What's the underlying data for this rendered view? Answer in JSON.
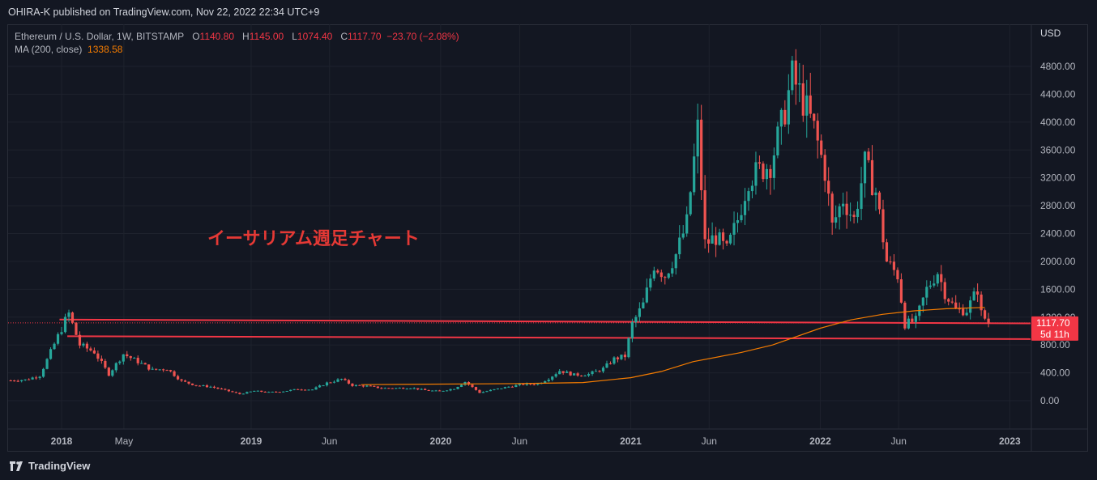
{
  "header": {
    "published_text": "OHIRA-K published on TradingView.com, Nov 22, 2022 22:34 UTC+9"
  },
  "legend": {
    "symbol": "Ethereum / U.S. Dollar, 1W, BITSTAMP",
    "open_label": "O",
    "open": "1140.80",
    "high_label": "H",
    "high": "1145.00",
    "low_label": "L",
    "low": "1074.40",
    "close_label": "C",
    "close": "1117.70",
    "change": "−23.70 (−2.08%)",
    "ma_label": "MA (200, close)",
    "ma_value": "1338.58"
  },
  "footer": {
    "brand": "TradingView"
  },
  "colors": {
    "background": "#131722",
    "up": "#26a69a",
    "down": "#ef5350",
    "ma": "#f57c00",
    "level_line": "#f23645",
    "annotation": "#e53935"
  },
  "chart_data": {
    "type": "candlestick",
    "title": "イーサリアム週足チャート",
    "currency": "USD",
    "y_ticks": [
      "4800.00",
      "4400.00",
      "4000.00",
      "3600.00",
      "3200.00",
      "2800.00",
      "2400.00",
      "2000.00",
      "1600.00",
      "1200.00",
      "800.00",
      "400.00",
      "0.00"
    ],
    "ylim": [
      -300,
      5000
    ],
    "x_ticks": [
      {
        "label": "2018",
        "date": "2018-01-01",
        "bold": true
      },
      {
        "label": "May",
        "date": "2018-05-01",
        "bold": false
      },
      {
        "label": "2019",
        "date": "2019-01-01",
        "bold": true
      },
      {
        "label": "Jun",
        "date": "2019-06-01",
        "bold": false
      },
      {
        "label": "2020",
        "date": "2020-01-01",
        "bold": true
      },
      {
        "label": "Jun",
        "date": "2020-06-01",
        "bold": false
      },
      {
        "label": "2021",
        "date": "2021-01-01",
        "bold": true
      },
      {
        "label": "Jun",
        "date": "2021-06-01",
        "bold": false
      },
      {
        "label": "2022",
        "date": "2022-01-01",
        "bold": true
      },
      {
        "label": "Jun",
        "date": "2022-06-01",
        "bold": false
      },
      {
        "label": "2023",
        "date": "2023-01-01",
        "bold": true
      }
    ],
    "xlim": [
      "2017-09-20",
      "2023-02-10"
    ],
    "close_series": [
      [
        "2017-09-25",
        290
      ],
      [
        "2017-10-23",
        300
      ],
      [
        "2017-11-20",
        360
      ],
      [
        "2017-12-11",
        700
      ],
      [
        "2018-01-08",
        1150
      ],
      [
        "2018-01-15",
        1250
      ],
      [
        "2018-02-05",
        800
      ],
      [
        "2018-03-05",
        700
      ],
      [
        "2018-04-02",
        380
      ],
      [
        "2018-04-30",
        670
      ],
      [
        "2018-05-28",
        560
      ],
      [
        "2018-06-25",
        440
      ],
      [
        "2018-07-23",
        460
      ],
      [
        "2018-08-20",
        280
      ],
      [
        "2018-09-17",
        220
      ],
      [
        "2018-10-15",
        200
      ],
      [
        "2018-11-12",
        150
      ],
      [
        "2018-12-10",
        95
      ],
      [
        "2019-01-07",
        140
      ],
      [
        "2019-02-04",
        120
      ],
      [
        "2019-03-04",
        135
      ],
      [
        "2019-04-01",
        165
      ],
      [
        "2019-04-29",
        160
      ],
      [
        "2019-05-27",
        255
      ],
      [
        "2019-06-24",
        310
      ],
      [
        "2019-07-15",
        220
      ],
      [
        "2019-08-12",
        210
      ],
      [
        "2019-09-09",
        180
      ],
      [
        "2019-10-07",
        180
      ],
      [
        "2019-11-04",
        185
      ],
      [
        "2019-12-02",
        150
      ],
      [
        "2019-12-30",
        135
      ],
      [
        "2020-01-27",
        175
      ],
      [
        "2020-02-17",
        270
      ],
      [
        "2020-03-16",
        115
      ],
      [
        "2020-04-13",
        160
      ],
      [
        "2020-05-11",
        200
      ],
      [
        "2020-06-08",
        235
      ],
      [
        "2020-07-06",
        240
      ],
      [
        "2020-07-27",
        320
      ],
      [
        "2020-08-17",
        430
      ],
      [
        "2020-09-14",
        370
      ],
      [
        "2020-10-12",
        380
      ],
      [
        "2020-11-09",
        460
      ],
      [
        "2020-11-30",
        600
      ],
      [
        "2020-12-21",
        640
      ],
      [
        "2021-01-04",
        1100
      ],
      [
        "2021-01-25",
        1380
      ],
      [
        "2021-02-15",
        1950
      ],
      [
        "2021-03-08",
        1800
      ],
      [
        "2021-03-29",
        2100
      ],
      [
        "2021-04-19",
        2550
      ],
      [
        "2021-05-10",
        3900
      ],
      [
        "2021-05-24",
        2250
      ],
      [
        "2021-06-14",
        2350
      ],
      [
        "2021-07-05",
        2150
      ],
      [
        "2021-07-26",
        2600
      ],
      [
        "2021-08-16",
        3200
      ],
      [
        "2021-09-06",
        3300
      ],
      [
        "2021-09-27",
        3400
      ],
      [
        "2021-10-18",
        3950
      ],
      [
        "2021-11-08",
        4650
      ],
      [
        "2021-11-29",
        4300
      ],
      [
        "2021-12-20",
        3900
      ],
      [
        "2022-01-10",
        3300
      ],
      [
        "2022-01-24",
        2500
      ],
      [
        "2022-02-14",
        2900
      ],
      [
        "2022-03-07",
        2600
      ],
      [
        "2022-03-28",
        3400
      ],
      [
        "2022-04-18",
        3000
      ],
      [
        "2022-05-09",
        2000
      ],
      [
        "2022-05-30",
        1800
      ],
      [
        "2022-06-13",
        1100
      ],
      [
        "2022-07-04",
        1150
      ],
      [
        "2022-07-25",
        1600
      ],
      [
        "2022-08-15",
        1850
      ],
      [
        "2022-08-29",
        1550
      ],
      [
        "2022-09-19",
        1300
      ],
      [
        "2022-10-10",
        1300
      ],
      [
        "2022-10-31",
        1600
      ],
      [
        "2022-11-07",
        1250
      ],
      [
        "2022-11-21",
        1117.7
      ]
    ],
    "ma_200": [
      [
        "2019-08-01",
        230
      ],
      [
        "2020-06-01",
        245
      ],
      [
        "2020-10-01",
        260
      ],
      [
        "2021-01-01",
        330
      ],
      [
        "2021-03-01",
        420
      ],
      [
        "2021-05-01",
        560
      ],
      [
        "2021-08-01",
        690
      ],
      [
        "2021-10-01",
        800
      ],
      [
        "2022-01-01",
        1040
      ],
      [
        "2022-03-01",
        1160
      ],
      [
        "2022-05-01",
        1240
      ],
      [
        "2022-07-01",
        1290
      ],
      [
        "2022-09-01",
        1320
      ],
      [
        "2022-11-14",
        1338.58
      ]
    ],
    "horizontal_levels": [
      {
        "y1": 1165,
        "y2": 1110,
        "from": "2017-12-28",
        "to": "2023-02-05"
      },
      {
        "y1": 925,
        "y2": 885,
        "from": "2018-01-12",
        "to": "2023-02-05"
      }
    ],
    "price_label": "1117.70",
    "countdown_label": "5d 11h"
  }
}
